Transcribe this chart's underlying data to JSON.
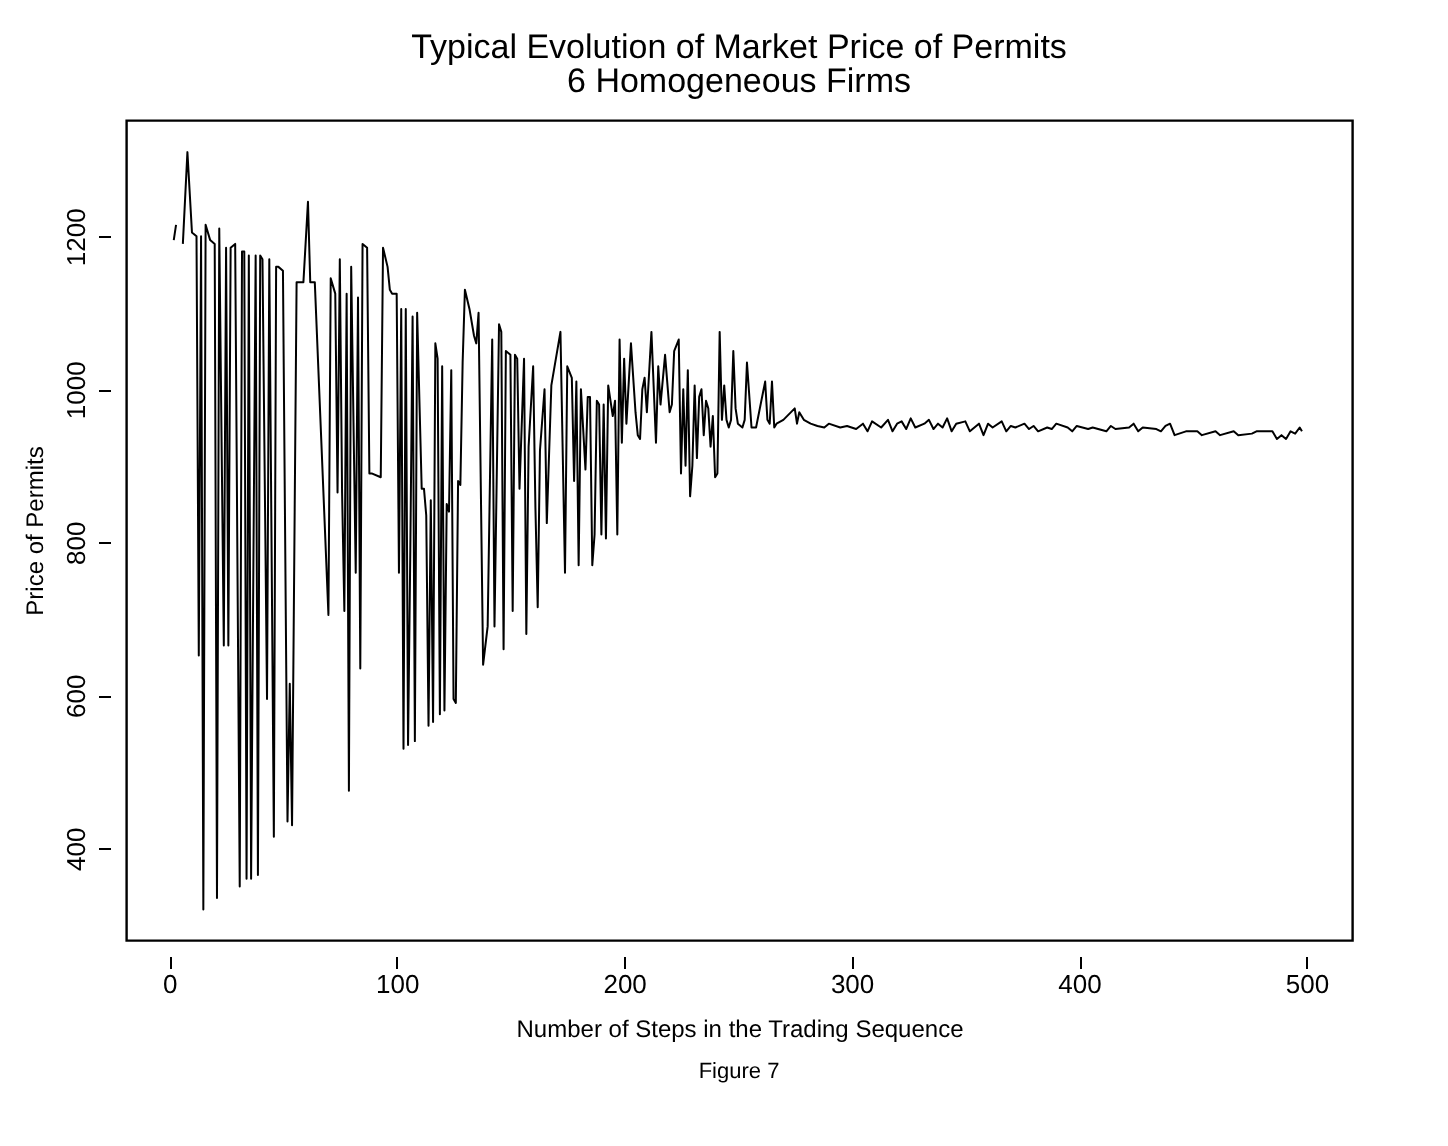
{
  "chart_data": {
    "type": "line",
    "title": "Typical Evolution of Market Price of Permits",
    "subtitle": "6 Homogeneous Firms",
    "xlabel": "Number of Steps in the Trading Sequence",
    "ylabel": "Price of Permits",
    "annotations": [
      "Figure 7"
    ],
    "x": [
      2,
      3,
      4,
      6,
      8,
      10,
      12,
      13,
      14,
      15,
      16,
      18,
      20,
      21,
      22,
      24,
      25,
      26,
      27,
      29,
      31,
      32,
      33,
      34,
      35,
      36,
      38,
      39,
      40,
      41,
      43,
      44,
      46,
      47,
      48,
      50,
      52,
      53,
      54,
      56,
      57,
      59,
      61,
      62,
      64,
      70,
      71,
      73,
      74,
      75,
      76,
      77,
      78,
      79,
      80,
      82,
      83,
      84,
      85,
      87,
      88,
      89,
      93,
      94,
      96,
      97,
      98,
      100,
      101,
      102,
      103,
      104,
      105,
      106,
      107,
      108,
      109,
      111,
      112,
      113,
      114,
      115,
      116,
      117,
      118,
      119,
      120,
      121,
      122,
      123,
      124,
      125,
      126,
      127,
      128,
      129,
      130,
      132,
      134,
      135,
      136,
      138,
      140,
      141,
      142,
      143,
      145,
      146,
      147,
      148,
      150,
      151,
      152,
      153,
      154,
      156,
      157,
      158,
      160,
      161,
      162,
      163,
      165,
      166,
      168,
      172,
      174,
      175,
      177,
      178,
      179,
      180,
      181,
      183,
      184,
      185,
      186,
      187,
      188,
      189,
      190,
      191,
      192,
      193,
      195,
      196,
      197,
      198,
      199,
      200,
      201,
      203,
      205,
      206,
      207,
      208,
      209,
      210,
      212,
      214,
      215,
      216,
      218,
      220,
      221,
      222,
      224,
      225,
      226,
      227,
      228,
      229,
      230,
      231,
      232,
      233,
      234,
      235,
      236,
      237,
      238,
      239,
      240,
      241,
      242,
      243,
      244,
      245,
      246,
      247,
      248,
      249,
      250,
      252,
      253,
      254,
      256,
      258,
      262,
      263,
      264,
      265,
      266,
      267,
      270,
      275,
      276,
      277,
      279,
      282,
      285,
      288,
      290,
      295,
      298,
      302,
      305,
      307,
      309,
      313,
      316,
      318,
      320,
      322,
      324,
      326,
      328,
      332,
      334,
      336,
      338,
      340,
      342,
      344,
      346,
      350,
      352,
      354,
      356,
      358,
      360,
      362,
      366,
      368,
      370,
      372,
      376,
      378,
      380,
      382,
      386,
      388,
      390,
      395,
      397,
      399,
      404,
      406,
      412,
      414,
      416,
      422,
      424,
      426,
      428,
      434,
      436,
      438,
      440,
      442,
      447,
      452,
      454,
      460,
      462,
      468,
      470,
      476,
      478,
      485,
      487,
      489,
      491,
      493,
      495,
      497,
      498
    ],
    "series": [
      {
        "color": "#000000",
        "values": [
          1195,
          1215,
          null,
          1190,
          1310,
          1205,
          1200,
          652,
          1200,
          320,
          1215,
          1195,
          1190,
          335,
          1210,
          665,
          1185,
          665,
          1185,
          1190,
          350,
          1180,
          1180,
          360,
          1175,
          360,
          1175,
          365,
          1175,
          1170,
          595,
          1170,
          415,
          1160,
          1160,
          1155,
          435,
          615,
          430,
          1140,
          1140,
          1140,
          1245,
          1140,
          1140,
          705,
          1145,
          1125,
          865,
          1170,
          865,
          710,
          1125,
          475,
          1160,
          760,
          1120,
          635,
          1190,
          1185,
          890,
          890,
          885,
          1185,
          1160,
          1130,
          1125,
          1125,
          760,
          1105,
          530,
          1105,
          535,
          790,
          1095,
          540,
          1100,
          870,
          870,
          835,
          560,
          855,
          565,
          1060,
          1040,
          575,
          1030,
          580,
          850,
          840,
          1025,
          595,
          590,
          880,
          875,
          1035,
          1130,
          1105,
          1070,
          1060,
          1100,
          640,
          690,
          880,
          1065,
          690,
          1085,
          1075,
          660,
          1050,
          1045,
          710,
          1045,
          1040,
          870,
          1040,
          680,
          925,
          1030,
          845,
          715,
          920,
          1000,
          825,
          1005,
          1075,
          760,
          1030,
          1015,
          880,
          1010,
          770,
          1000,
          895,
          990,
          990,
          770,
          810,
          985,
          980,
          810,
          980,
          805,
          1005,
          965,
          985,
          810,
          1065,
          930,
          1040,
          955,
          1060,
          970,
          940,
          935,
          1000,
          1015,
          970,
          1075,
          930,
          1030,
          980,
          1045,
          970,
          980,
          1050,
          1065,
          890,
          1000,
          900,
          1025,
          860,
          900,
          1005,
          910,
          990,
          1000,
          940,
          985,
          975,
          925,
          965,
          885,
          890,
          1075,
          960,
          1005,
          960,
          950,
          960,
          1050,
          975,
          955,
          950,
          960,
          1035,
          950,
          950,
          1010,
          960,
          955,
          1010,
          950,
          955,
          960,
          975,
          955,
          970,
          960,
          955,
          952,
          950,
          955,
          950,
          952,
          948,
          955,
          945,
          958,
          950,
          960,
          945,
          955,
          958,
          948,
          962,
          950,
          955,
          960,
          948,
          955,
          950,
          962,
          945,
          955,
          958,
          945,
          950,
          955,
          940,
          955,
          950,
          958,
          945,
          952,
          950,
          955,
          948,
          952,
          945,
          950,
          948,
          955,
          950,
          945,
          952,
          948,
          950,
          945,
          952,
          948,
          950,
          955,
          945,
          950,
          948,
          945,
          952,
          955,
          940,
          945,
          945,
          940,
          945,
          940,
          945,
          940,
          942,
          945,
          945,
          935,
          940,
          935,
          945,
          942,
          950,
          945
        ]
      }
    ],
    "xlim": [
      -19,
      520
    ],
    "ylim": [
      280,
      1352
    ],
    "xticks": [
      0,
      100,
      200,
      300,
      400,
      500
    ],
    "yticks": [
      400,
      600,
      800,
      1000,
      1200
    ],
    "grid": false,
    "marker": "none",
    "line_style": "solid"
  }
}
